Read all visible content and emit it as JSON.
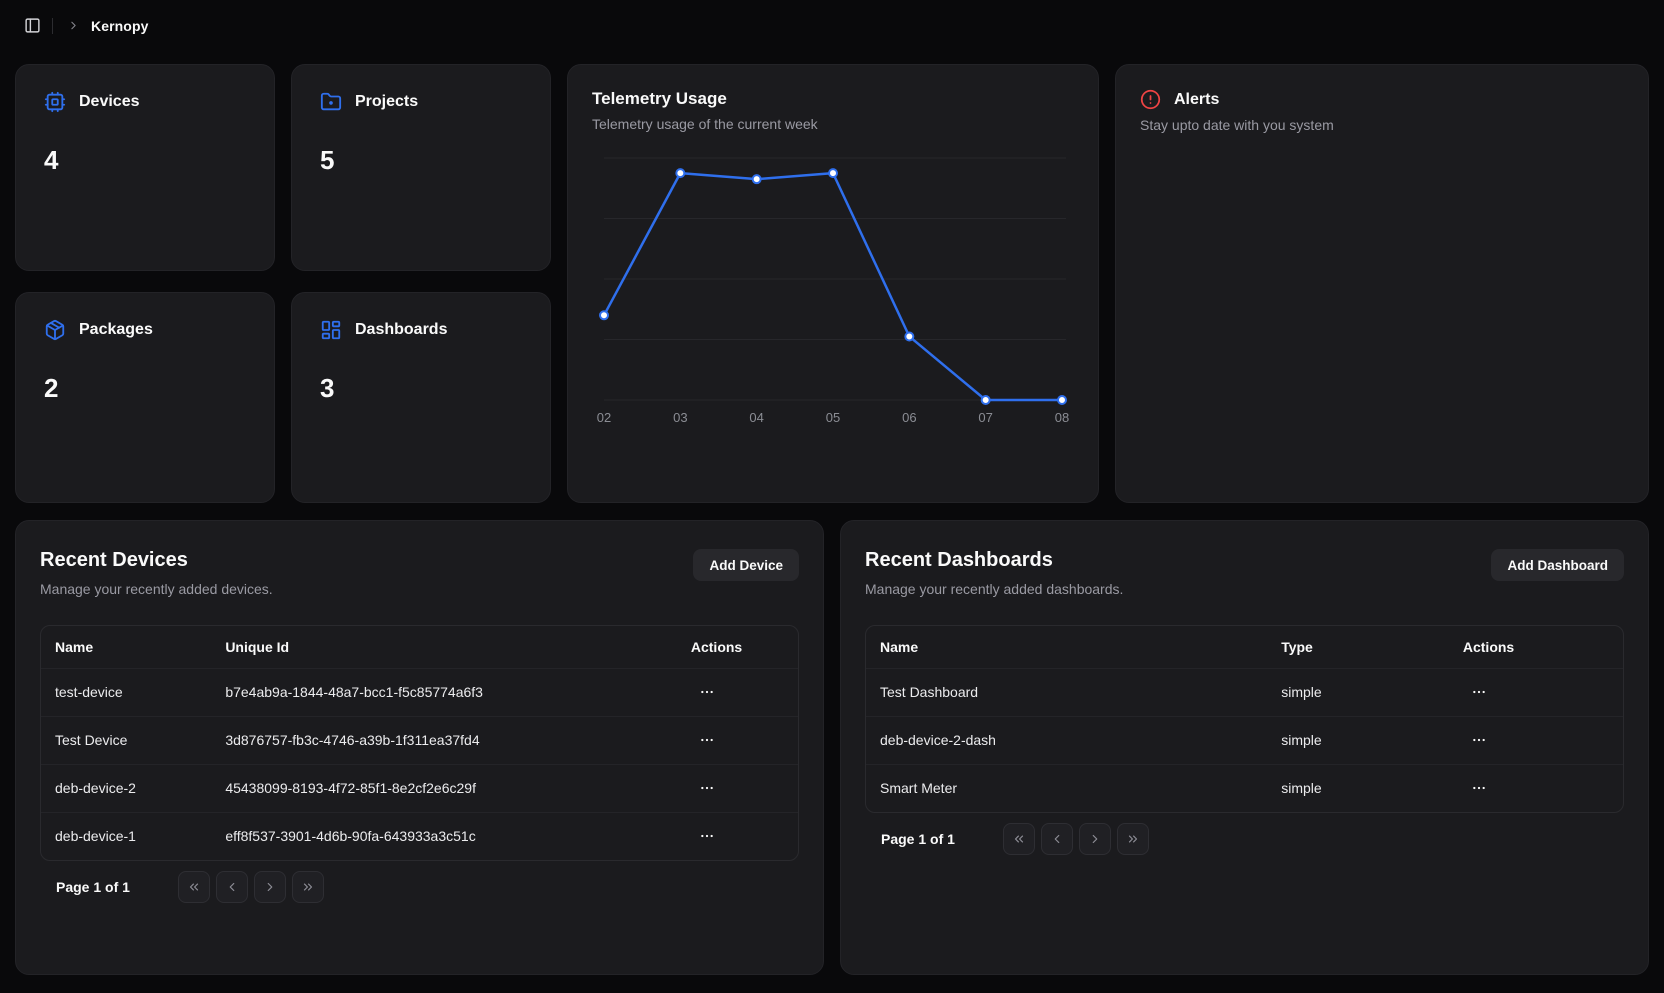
{
  "colors": {
    "page_bg": "#09090b",
    "card_bg": "#1b1b1e",
    "accent_blue": "#2f6fed",
    "alert_red": "#ef4444",
    "muted_text": "#9a9aa3"
  },
  "topbar": {
    "sidebar_toggle_icon": "panel-left-icon",
    "breadcrumb_separator_icon": "chevron-right-icon",
    "app_name": "Kernopy"
  },
  "stat_cards": [
    {
      "label": "Devices",
      "value": "4",
      "icon": "cpu-icon"
    },
    {
      "label": "Projects",
      "value": "5",
      "icon": "folder-dot-icon"
    },
    {
      "label": "Packages",
      "value": "2",
      "icon": "package-icon"
    },
    {
      "label": "Dashboards",
      "value": "3",
      "icon": "layout-dashboard-icon"
    }
  ],
  "telemetry": {
    "title": "Telemetry Usage",
    "subtitle": "Telemetry usage of the current week"
  },
  "chart_data": {
    "type": "line",
    "title": "Telemetry Usage",
    "x": [
      "02",
      "03",
      "04",
      "05",
      "06",
      "07",
      "08"
    ],
    "series": [
      {
        "name": "telemetry",
        "values": [
          1.4,
          3.75,
          3.65,
          3.75,
          1.05,
          0,
          0
        ]
      }
    ],
    "xlabel": "",
    "ylabel": "",
    "ylim": [
      0,
      4
    ],
    "y_axis_labels_visible": false,
    "grid": "horizontal",
    "gridline_values": [
      0,
      1,
      2,
      3,
      4
    ],
    "legend": "none",
    "line_color": "#2f6fed",
    "point_style": "white fill with blue ring",
    "tick_color": "#8b8d94"
  },
  "alerts": {
    "icon": "circle-alert-icon",
    "title": "Alerts",
    "subtitle": "Stay upto date with you system"
  },
  "recent_devices": {
    "title": "Recent Devices",
    "subtitle": "Manage your recently added devices.",
    "add_button": "Add Device",
    "columns": [
      "Name",
      "Unique Id",
      "Actions"
    ],
    "rows": [
      {
        "name": "test-device",
        "unique_id": "b7e4ab9a-1844-48a7-bcc1-f5c85774a6f3"
      },
      {
        "name": "Test Device",
        "unique_id": "3d876757-fb3c-4746-a39b-1f311ea37fd4"
      },
      {
        "name": "deb-device-2",
        "unique_id": "45438099-8193-4f72-85f1-8e2cf2e6c29f"
      },
      {
        "name": "deb-device-1",
        "unique_id": "eff8f537-3901-4d6b-90fa-643933a3c51c"
      }
    ],
    "row_actions_icon": "ellipsis-icon",
    "page_label": "Page 1 of 1",
    "pager_icons": [
      "first-page-icon",
      "previous-page-icon",
      "next-page-icon",
      "last-page-icon"
    ]
  },
  "recent_dashboards": {
    "title": "Recent Dashboards",
    "subtitle": "Manage your recently added dashboards.",
    "add_button": "Add Dashboard",
    "columns": [
      "Name",
      "Type",
      "Actions"
    ],
    "rows": [
      {
        "name": "Test Dashboard",
        "type": "simple"
      },
      {
        "name": "deb-device-2-dash",
        "type": "simple"
      },
      {
        "name": "Smart Meter",
        "type": "simple"
      }
    ],
    "row_actions_icon": "ellipsis-icon",
    "page_label": "Page 1 of 1",
    "pager_icons": [
      "first-page-icon",
      "previous-page-icon",
      "next-page-icon",
      "last-page-icon"
    ]
  }
}
